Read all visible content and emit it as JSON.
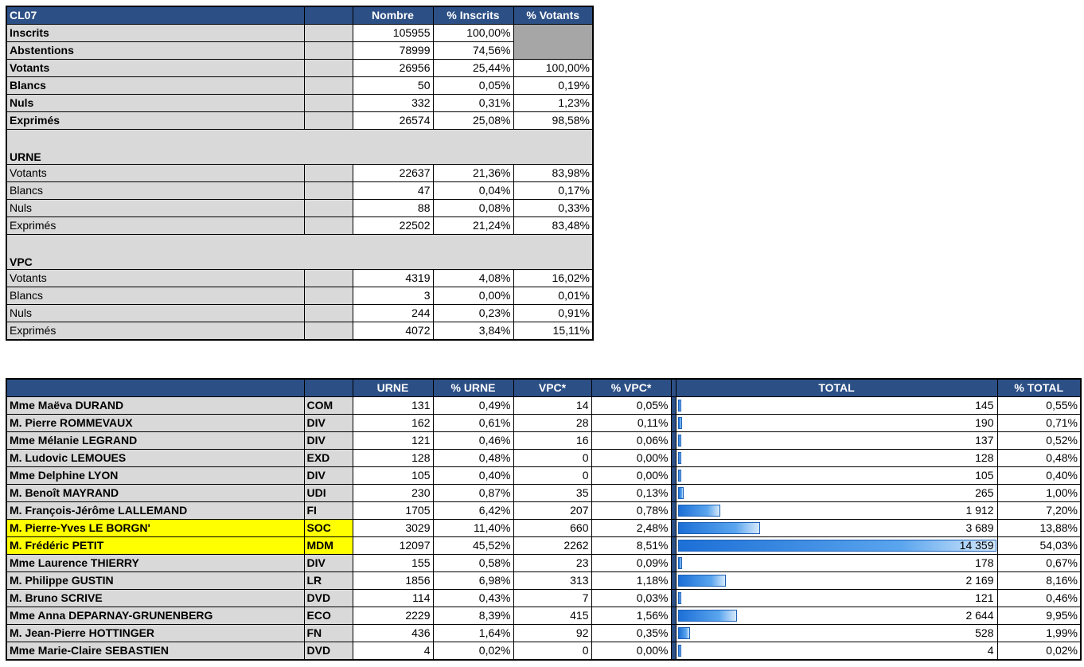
{
  "summary": {
    "headers": {
      "code": "CL07",
      "nombre": "Nombre",
      "pct_inscrits": "% Inscrits",
      "pct_votants": "% Votants"
    },
    "global_rows": [
      {
        "label": "Inscrits",
        "nombre": "105955",
        "pct_inscrits": "100,00%",
        "pct_votants": ""
      },
      {
        "label": "Abstentions",
        "nombre": "78999",
        "pct_inscrits": "74,56%",
        "pct_votants": ""
      },
      {
        "label": "Votants",
        "nombre": "26956",
        "pct_inscrits": "25,44%",
        "pct_votants": "100,00%"
      },
      {
        "label": "Blancs",
        "nombre": "50",
        "pct_inscrits": "0,05%",
        "pct_votants": "0,19%"
      },
      {
        "label": "Nuls",
        "nombre": "332",
        "pct_inscrits": "0,31%",
        "pct_votants": "1,23%"
      },
      {
        "label": "Exprimés",
        "nombre": "26574",
        "pct_inscrits": "25,08%",
        "pct_votants": "98,58%"
      }
    ],
    "urne_title": "URNE",
    "urne_rows": [
      {
        "label": "Votants",
        "nombre": "22637",
        "pct_inscrits": "21,36%",
        "pct_votants": "83,98%"
      },
      {
        "label": "Blancs",
        "nombre": "47",
        "pct_inscrits": "0,04%",
        "pct_votants": "0,17%"
      },
      {
        "label": "Nuls",
        "nombre": "88",
        "pct_inscrits": "0,08%",
        "pct_votants": "0,33%"
      },
      {
        "label": "Exprimés",
        "nombre": "22502",
        "pct_inscrits": "21,24%",
        "pct_votants": "83,48%"
      }
    ],
    "vpc_title": "VPC",
    "vpc_rows": [
      {
        "label": "Votants",
        "nombre": "4319",
        "pct_inscrits": "4,08%",
        "pct_votants": "16,02%"
      },
      {
        "label": "Blancs",
        "nombre": "3",
        "pct_inscrits": "0,00%",
        "pct_votants": "0,01%"
      },
      {
        "label": "Nuls",
        "nombre": "244",
        "pct_inscrits": "0,23%",
        "pct_votants": "0,91%"
      },
      {
        "label": "Exprimés",
        "nombre": "4072",
        "pct_inscrits": "3,84%",
        "pct_votants": "15,11%"
      }
    ]
  },
  "candidates": {
    "headers": {
      "urne": "URNE",
      "pct_urne": "% URNE",
      "vpc": "VPC*",
      "pct_vpc": "% VPC*",
      "total": "TOTAL",
      "pct_total": "% TOTAL"
    },
    "bar_max": 14359,
    "bar_color": "#1c6fd6",
    "highlight_color": "#ffff00",
    "header_color": "#2c4f85",
    "rows": [
      {
        "name": "Mme Maëva DURAND",
        "party": "COM",
        "urne": "131",
        "pct_urne": "0,49%",
        "vpc": "14",
        "pct_vpc": "0,05%",
        "total": "145",
        "total_value": 145,
        "pct_total": "0,55%",
        "highlight": false
      },
      {
        "name": "M. Pierre ROMMEVAUX",
        "party": "DIV",
        "urne": "162",
        "pct_urne": "0,61%",
        "vpc": "28",
        "pct_vpc": "0,11%",
        "total": "190",
        "total_value": 190,
        "pct_total": "0,71%",
        "highlight": false
      },
      {
        "name": "Mme Mélanie LEGRAND",
        "party": "DIV",
        "urne": "121",
        "pct_urne": "0,46%",
        "vpc": "16",
        "pct_vpc": "0,06%",
        "total": "137",
        "total_value": 137,
        "pct_total": "0,52%",
        "highlight": false
      },
      {
        "name": "M. Ludovic LEMOUES",
        "party": "EXD",
        "urne": "128",
        "pct_urne": "0,48%",
        "vpc": "0",
        "pct_vpc": "0,00%",
        "total": "128",
        "total_value": 128,
        "pct_total": "0,48%",
        "highlight": false
      },
      {
        "name": "Mme Delphine LYON",
        "party": "DIV",
        "urne": "105",
        "pct_urne": "0,40%",
        "vpc": "0",
        "pct_vpc": "0,00%",
        "total": "105",
        "total_value": 105,
        "pct_total": "0,40%",
        "highlight": false
      },
      {
        "name": "M. Benoît MAYRAND",
        "party": "UDI",
        "urne": "230",
        "pct_urne": "0,87%",
        "vpc": "35",
        "pct_vpc": "0,13%",
        "total": "265",
        "total_value": 265,
        "pct_total": "1,00%",
        "highlight": false
      },
      {
        "name": "M. François-Jérôme LALLEMAND",
        "party": "FI",
        "urne": "1705",
        "pct_urne": "6,42%",
        "vpc": "207",
        "pct_vpc": "0,78%",
        "total": "1 912",
        "total_value": 1912,
        "pct_total": "7,20%",
        "highlight": false
      },
      {
        "name": "M. Pierre-Yves LE BORGN'",
        "party": "SOC",
        "urne": "3029",
        "pct_urne": "11,40%",
        "vpc": "660",
        "pct_vpc": "2,48%",
        "total": "3 689",
        "total_value": 3689,
        "pct_total": "13,88%",
        "highlight": true
      },
      {
        "name": "M. Frédéric PETIT",
        "party": "MDM",
        "urne": "12097",
        "pct_urne": "45,52%",
        "vpc": "2262",
        "pct_vpc": "8,51%",
        "total": "14 359",
        "total_value": 14359,
        "pct_total": "54,03%",
        "highlight": true
      },
      {
        "name": "Mme Laurence THIERRY",
        "party": "DIV",
        "urne": "155",
        "pct_urne": "0,58%",
        "vpc": "23",
        "pct_vpc": "0,09%",
        "total": "178",
        "total_value": 178,
        "pct_total": "0,67%",
        "highlight": false
      },
      {
        "name": "M. Philippe GUSTIN",
        "party": "LR",
        "urne": "1856",
        "pct_urne": "6,98%",
        "vpc": "313",
        "pct_vpc": "1,18%",
        "total": "2 169",
        "total_value": 2169,
        "pct_total": "8,16%",
        "highlight": false
      },
      {
        "name": "M. Bruno SCRIVE",
        "party": "DVD",
        "urne": "114",
        "pct_urne": "0,43%",
        "vpc": "7",
        "pct_vpc": "0,03%",
        "total": "121",
        "total_value": 121,
        "pct_total": "0,46%",
        "highlight": false
      },
      {
        "name": "Mme Anna DEPARNAY-GRUNENBERG",
        "party": "ECO",
        "urne": "2229",
        "pct_urne": "8,39%",
        "vpc": "415",
        "pct_vpc": "1,56%",
        "total": "2 644",
        "total_value": 2644,
        "pct_total": "9,95%",
        "highlight": false
      },
      {
        "name": "M. Jean-Pierre HOTTINGER",
        "party": "FN",
        "urne": "436",
        "pct_urne": "1,64%",
        "vpc": "92",
        "pct_vpc": "0,35%",
        "total": "528",
        "total_value": 528,
        "pct_total": "1,99%",
        "highlight": false
      },
      {
        "name": "Mme Marie-Claire SEBASTIEN",
        "party": "DVD",
        "urne": "4",
        "pct_urne": "0,02%",
        "vpc": "0",
        "pct_vpc": "0,00%",
        "total": "4",
        "total_value": 4,
        "pct_total": "0,02%",
        "highlight": false
      }
    ]
  }
}
